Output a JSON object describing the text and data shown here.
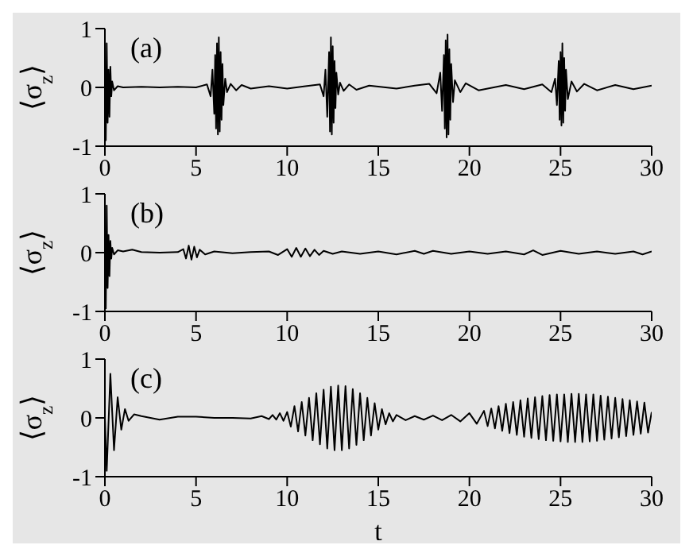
{
  "chart_data": [
    {
      "type": "line",
      "ylabel": "⟨σ$_{z}$⟩",
      "annotations": [
        "(a)"
      ],
      "color": "#000000",
      "xlim": [
        0,
        30
      ],
      "xticks": [
        0,
        5,
        10,
        15,
        20,
        25,
        30
      ],
      "ylim": [
        -1,
        1
      ],
      "yticks": [
        -1,
        0,
        1
      ],
      "x": [
        0,
        0.05,
        0.1,
        0.15,
        0.2,
        0.25,
        0.3,
        0.35,
        0.4,
        0.5,
        0.7,
        1,
        2,
        3,
        4,
        5,
        5.6,
        5.8,
        5.9,
        6.0,
        6.05,
        6.1,
        6.15,
        6.2,
        6.25,
        6.3,
        6.35,
        6.4,
        6.45,
        6.5,
        6.6,
        6.7,
        6.9,
        7.2,
        7.5,
        8,
        9,
        10,
        11,
        11.8,
        12.0,
        12.1,
        12.2,
        12.3,
        12.35,
        12.4,
        12.45,
        12.5,
        12.55,
        12.6,
        12.65,
        12.7,
        12.8,
        12.9,
        13.1,
        13.4,
        13.8,
        14.5,
        16,
        17,
        17.8,
        18.2,
        18.4,
        18.5,
        18.6,
        18.65,
        18.7,
        18.75,
        18.8,
        18.85,
        18.9,
        18.95,
        19.0,
        19.1,
        19.2,
        19.5,
        19.8,
        20.5,
        22,
        23,
        24,
        24.5,
        24.7,
        24.8,
        24.9,
        24.95,
        25.0,
        25.05,
        25.1,
        25.15,
        25.2,
        25.25,
        25.3,
        25.4,
        25.6,
        25.9,
        26.3,
        27,
        28,
        29,
        30
      ],
      "values": [
        0,
        -0.9,
        0.75,
        -0.6,
        0.3,
        -0.5,
        0.35,
        -0.15,
        0.1,
        -0.05,
        0.02,
        0,
        0.01,
        0,
        0.01,
        0,
        0.05,
        -0.15,
        0.3,
        -0.45,
        0.55,
        -0.7,
        0.75,
        -0.8,
        0.85,
        -0.75,
        0.6,
        -0.55,
        0.4,
        -0.3,
        0.15,
        -0.08,
        0.06,
        -0.05,
        0.04,
        -0.02,
        0.02,
        -0.02,
        0.02,
        0.05,
        -0.15,
        0.3,
        -0.5,
        0.6,
        -0.75,
        0.85,
        -0.8,
        0.7,
        -0.6,
        0.45,
        -0.35,
        0.25,
        -0.12,
        0.08,
        -0.06,
        0.05,
        -0.04,
        0.03,
        -0.02,
        0.03,
        0.06,
        -0.1,
        0.25,
        -0.4,
        0.55,
        -0.7,
        0.8,
        -0.85,
        0.9,
        -0.8,
        0.65,
        -0.55,
        0.4,
        -0.25,
        0.12,
        -0.08,
        0.07,
        -0.05,
        0.04,
        -0.03,
        0.05,
        -0.08,
        0.15,
        -0.3,
        0.45,
        -0.55,
        0.6,
        -0.65,
        0.75,
        -0.6,
        0.5,
        -0.4,
        0.3,
        -0.2,
        0.1,
        -0.07,
        0.06,
        -0.05,
        0.04,
        -0.03,
        0.03
      ]
    },
    {
      "type": "line",
      "ylabel": "⟨σ$_{z}$⟩",
      "annotations": [
        "(b)"
      ],
      "color": "#000000",
      "xlim": [
        0,
        30
      ],
      "xticks": [
        0,
        5,
        10,
        15,
        20,
        25,
        30
      ],
      "ylim": [
        -1,
        1
      ],
      "yticks": [
        -1,
        0,
        1
      ],
      "x": [
        0,
        0.05,
        0.1,
        0.15,
        0.2,
        0.25,
        0.3,
        0.35,
        0.4,
        0.5,
        0.7,
        1,
        1.5,
        2,
        3,
        4,
        4.3,
        4.45,
        4.6,
        4.75,
        4.9,
        5.05,
        5.2,
        5.5,
        6,
        7,
        8,
        9,
        9.5,
        10,
        10.25,
        10.5,
        10.75,
        11,
        11.25,
        11.5,
        11.75,
        12,
        12.5,
        13,
        14,
        15,
        16,
        17,
        17.5,
        18,
        19,
        20,
        21,
        22,
        23,
        23.5,
        24,
        25,
        26,
        27,
        28,
        29,
        29.5,
        30
      ],
      "values": [
        0,
        -0.95,
        0.8,
        -0.6,
        0.3,
        -0.4,
        0.2,
        -0.1,
        0.08,
        -0.03,
        0.04,
        0.02,
        0.05,
        0.01,
        0,
        0.01,
        0.06,
        -0.1,
        0.12,
        -0.12,
        0.1,
        -0.08,
        0.05,
        -0.03,
        0.02,
        -0.01,
        0.01,
        0.02,
        -0.04,
        0.06,
        -0.07,
        0.08,
        -0.07,
        0.07,
        -0.06,
        0.05,
        -0.04,
        0.03,
        -0.02,
        0.02,
        -0.02,
        0.02,
        -0.03,
        0.03,
        -0.02,
        0.03,
        -0.02,
        0.02,
        -0.02,
        0.02,
        -0.03,
        0.04,
        -0.04,
        0.03,
        -0.02,
        0.02,
        -0.02,
        0.02,
        -0.03,
        0.02
      ]
    },
    {
      "type": "line",
      "xlabel": "t",
      "ylabel": "⟨σ$_{z}$⟩",
      "annotations": [
        "(c)"
      ],
      "color": "#000000",
      "xlim": [
        0,
        30
      ],
      "xticks": [
        0,
        5,
        10,
        15,
        20,
        25,
        30
      ],
      "ylim": [
        -1,
        1
      ],
      "yticks": [
        -1,
        0,
        1
      ],
      "x": [
        0,
        0.1,
        0.3,
        0.5,
        0.7,
        0.9,
        1.1,
        1.3,
        1.6,
        2,
        3,
        4,
        5,
        6,
        7,
        8,
        8.6,
        9,
        9.2,
        9.4,
        9.6,
        9.8,
        10.0,
        10.2,
        10.4,
        10.6,
        10.8,
        11.0,
        11.2,
        11.4,
        11.6,
        11.8,
        12.0,
        12.2,
        12.4,
        12.6,
        12.8,
        13.0,
        13.2,
        13.4,
        13.6,
        13.8,
        14.0,
        14.2,
        14.4,
        14.6,
        14.8,
        15.0,
        15.2,
        15.4,
        15.6,
        15.8,
        16.0,
        16.5,
        17,
        17.5,
        18,
        18.5,
        19,
        19.5,
        20,
        20.4,
        20.8,
        21.0,
        21.2,
        21.4,
        21.6,
        21.8,
        22.0,
        22.2,
        22.4,
        22.6,
        22.8,
        23.0,
        23.2,
        23.4,
        23.6,
        23.8,
        24.0,
        24.2,
        24.4,
        24.6,
        24.8,
        25.0,
        25.2,
        25.4,
        25.6,
        25.8,
        26.0,
        26.2,
        26.4,
        26.6,
        26.8,
        27.0,
        27.2,
        27.4,
        27.6,
        27.8,
        28.0,
        28.2,
        28.4,
        28.6,
        28.8,
        29.0,
        29.2,
        29.4,
        29.6,
        29.8,
        30.0
      ],
      "values": [
        0,
        -0.9,
        0.75,
        -0.55,
        0.35,
        -0.2,
        0.15,
        -0.05,
        0.06,
        0.03,
        -0.03,
        0.02,
        0.02,
        0,
        0,
        -0.01,
        0.03,
        -0.02,
        0.05,
        -0.03,
        0.08,
        -0.05,
        0.1,
        -0.15,
        0.2,
        -0.23,
        0.27,
        -0.3,
        0.34,
        -0.38,
        0.42,
        -0.45,
        0.48,
        -0.52,
        0.53,
        -0.55,
        0.55,
        -0.55,
        0.54,
        -0.52,
        0.49,
        -0.46,
        0.42,
        -0.38,
        0.34,
        -0.3,
        0.25,
        -0.2,
        0.15,
        -0.11,
        0.08,
        -0.06,
        0.05,
        -0.04,
        0.03,
        -0.03,
        0.04,
        -0.04,
        0.05,
        -0.06,
        0.08,
        -0.1,
        0.12,
        -0.14,
        0.16,
        -0.18,
        0.2,
        -0.22,
        0.24,
        -0.26,
        0.27,
        -0.29,
        0.3,
        -0.32,
        0.33,
        -0.34,
        0.35,
        -0.36,
        0.37,
        -0.38,
        0.39,
        -0.39,
        0.4,
        -0.4,
        0.4,
        -0.41,
        0.41,
        -0.41,
        0.41,
        -0.41,
        0.4,
        -0.4,
        0.4,
        -0.39,
        0.38,
        -0.37,
        0.36,
        -0.35,
        0.34,
        -0.33,
        0.32,
        -0.31,
        0.3,
        -0.29,
        0.28,
        -0.27,
        0.26,
        -0.25,
        0.1
      ]
    }
  ]
}
